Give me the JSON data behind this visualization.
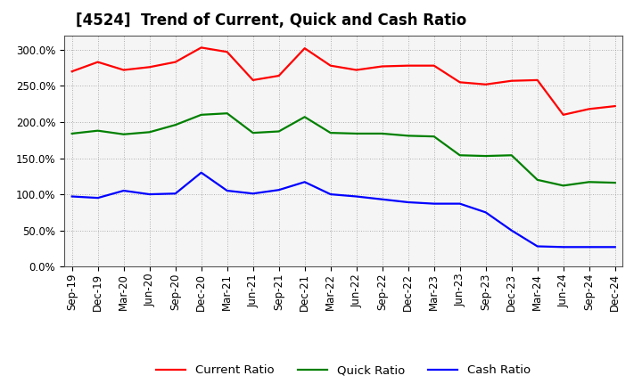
{
  "title": "[4524]  Trend of Current, Quick and Cash Ratio",
  "x_labels": [
    "Sep-19",
    "Dec-19",
    "Mar-20",
    "Jun-20",
    "Sep-20",
    "Dec-20",
    "Mar-21",
    "Jun-21",
    "Sep-21",
    "Dec-21",
    "Mar-22",
    "Jun-22",
    "Sep-22",
    "Dec-22",
    "Mar-23",
    "Jun-23",
    "Sep-23",
    "Dec-23",
    "Mar-24",
    "Jun-24",
    "Sep-24",
    "Dec-24"
  ],
  "current_ratio": [
    270,
    283,
    272,
    276,
    283,
    303,
    297,
    258,
    264,
    302,
    278,
    272,
    277,
    278,
    278,
    255,
    252,
    257,
    258,
    210,
    218,
    222
  ],
  "quick_ratio": [
    184,
    188,
    183,
    186,
    196,
    210,
    212,
    185,
    187,
    207,
    185,
    184,
    184,
    181,
    180,
    154,
    153,
    154,
    120,
    112,
    117,
    116
  ],
  "cash_ratio": [
    97,
    95,
    105,
    100,
    101,
    130,
    105,
    101,
    106,
    117,
    100,
    97,
    93,
    89,
    87,
    87,
    75,
    50,
    28,
    27,
    27,
    27
  ],
  "current_color": "#FF0000",
  "quick_color": "#008000",
  "cash_color": "#0000FF",
  "ylim": [
    0,
    320
  ],
  "yticks": [
    0,
    50,
    100,
    150,
    200,
    250,
    300
  ],
  "background_color": "#FFFFFF",
  "plot_bg_color": "#F5F5F5",
  "grid_color": "#999999",
  "title_fontsize": 12,
  "tick_fontsize": 8.5,
  "legend_fontsize": 9.5
}
